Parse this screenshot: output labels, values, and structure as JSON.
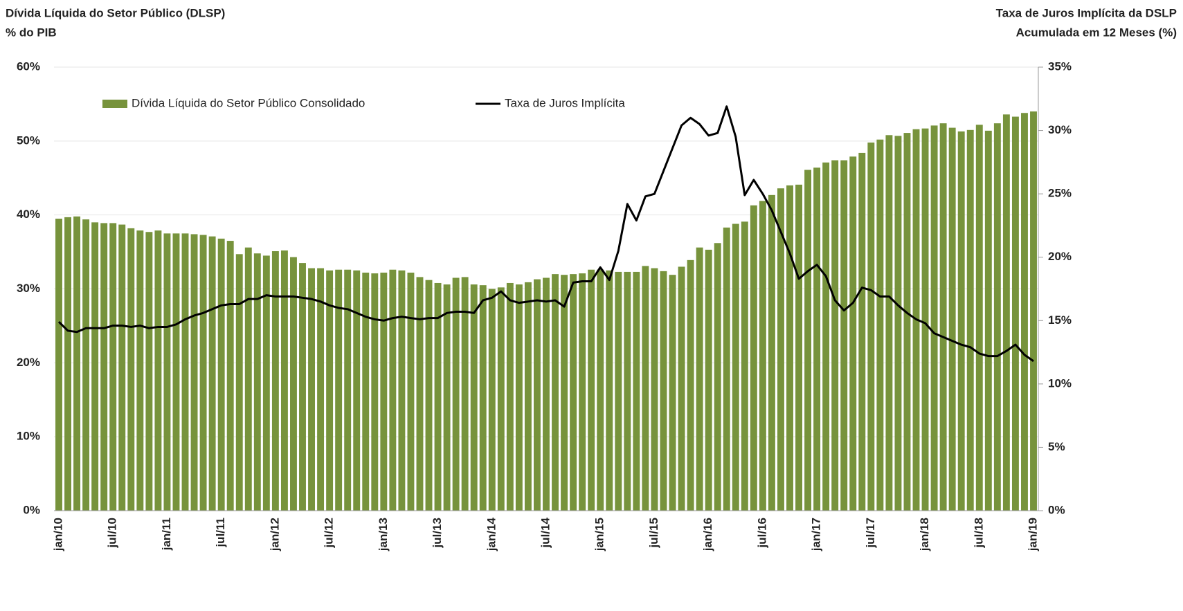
{
  "chart_data": {
    "type": "bar-line",
    "left_title": "Dívida Líquida do Setor Público (DLSP)",
    "left_subtitle": "% do PIB",
    "right_title": "Taxa de Juros Implícita da DSLP",
    "right_subtitle": "Acumulada em 12 Meses (%)",
    "categories": [
      "jan/10",
      null,
      null,
      null,
      null,
      null,
      "jul/10",
      null,
      null,
      null,
      null,
      null,
      "jan/11",
      null,
      null,
      null,
      null,
      null,
      "jul/11",
      null,
      null,
      null,
      null,
      null,
      "jan/12",
      null,
      null,
      null,
      null,
      null,
      "jul/12",
      null,
      null,
      null,
      null,
      null,
      "jan/13",
      null,
      null,
      null,
      null,
      null,
      "jul/13",
      null,
      null,
      null,
      null,
      null,
      "jan/14",
      null,
      null,
      null,
      null,
      null,
      "jul/14",
      null,
      null,
      null,
      null,
      null,
      "jan/15",
      null,
      null,
      null,
      null,
      null,
      "jul/15",
      null,
      null,
      null,
      null,
      null,
      "jan/16",
      null,
      null,
      null,
      null,
      null,
      "jul/16",
      null,
      null,
      null,
      null,
      null,
      "jan/17",
      null,
      null,
      null,
      null,
      null,
      "jul/17",
      null,
      null,
      null,
      null,
      null,
      "jan/18",
      null,
      null,
      null,
      null,
      null,
      "jul/18",
      null,
      null,
      null,
      null,
      null,
      "jan/19"
    ],
    "series": [
      {
        "name": "Dívida Líquida do Setor Público Consolidado",
        "kind": "bar",
        "color": "#77933c",
        "values": [
          39.5,
          39.7,
          39.8,
          39.4,
          39.0,
          38.9,
          38.9,
          38.7,
          38.2,
          37.9,
          37.7,
          37.9,
          37.5,
          37.5,
          37.5,
          37.4,
          37.3,
          37.1,
          36.8,
          36.5,
          34.7,
          35.6,
          34.8,
          34.5,
          35.1,
          35.2,
          34.3,
          33.5,
          32.8,
          32.8,
          32.5,
          32.6,
          32.6,
          32.5,
          32.2,
          32.1,
          32.2,
          32.6,
          32.5,
          32.2,
          31.6,
          31.2,
          30.8,
          30.6,
          31.5,
          31.6,
          30.6,
          30.5,
          30.0,
          30.2,
          30.8,
          30.6,
          30.9,
          31.3,
          31.5,
          32.0,
          31.9,
          32.0,
          32.1,
          32.6,
          32.6,
          32.5,
          32.3,
          32.3,
          32.3,
          33.1,
          32.8,
          32.4,
          31.9,
          33.0,
          33.9,
          35.6,
          35.3,
          36.2,
          38.3,
          38.8,
          39.1,
          41.3,
          41.9,
          42.7,
          43.6,
          44.0,
          44.1,
          46.1,
          46.4,
          47.1,
          47.4,
          47.4,
          47.9,
          48.4,
          49.8,
          50.2,
          50.8,
          50.7,
          51.1,
          51.6,
          51.7,
          52.1,
          52.4,
          51.8,
          51.3,
          51.5,
          52.2,
          51.4,
          52.4,
          53.6,
          53.3,
          53.8,
          54.0
        ]
      },
      {
        "name": "Taxa de Juros Implícita",
        "kind": "line",
        "axis": "y2",
        "color": "#000000",
        "values": [
          14.9,
          14.2,
          14.1,
          14.4,
          14.4,
          14.4,
          14.6,
          14.6,
          14.5,
          14.6,
          14.4,
          14.5,
          14.5,
          14.7,
          15.1,
          15.4,
          15.6,
          15.9,
          16.2,
          16.3,
          16.3,
          16.7,
          16.7,
          17.0,
          16.9,
          16.9,
          16.9,
          16.8,
          16.7,
          16.5,
          16.2,
          16.0,
          15.9,
          15.6,
          15.3,
          15.1,
          15.0,
          15.2,
          15.3,
          15.2,
          15.1,
          15.2,
          15.2,
          15.6,
          15.7,
          15.7,
          15.6,
          16.6,
          16.8,
          17.3,
          16.6,
          16.4,
          16.5,
          16.6,
          16.5,
          16.6,
          16.1,
          18.0,
          18.1,
          18.1,
          19.2,
          18.2,
          20.5,
          24.2,
          22.9,
          24.8,
          25.0,
          26.8,
          28.6,
          30.4,
          31.0,
          30.5,
          29.6,
          29.8,
          31.9,
          29.5,
          24.9,
          26.1,
          25.0,
          23.7,
          22.0,
          20.3,
          18.3,
          18.9,
          19.4,
          18.5,
          16.6,
          15.8,
          16.4,
          17.6,
          17.4,
          16.9,
          16.9,
          16.2,
          15.6,
          15.1,
          14.8,
          14.0,
          13.7,
          13.4,
          13.1,
          12.9,
          12.4,
          12.2,
          12.2,
          12.6,
          13.1,
          12.3,
          11.8
        ]
      }
    ],
    "ylim": [
      0,
      60
    ],
    "yticks": [
      {
        "value": 0,
        "label": "0%"
      },
      {
        "value": 10,
        "label": "10%"
      },
      {
        "value": 20,
        "label": "20%"
      },
      {
        "value": 30,
        "label": "30%"
      },
      {
        "value": 40,
        "label": "40%"
      },
      {
        "value": 50,
        "label": "50%"
      },
      {
        "value": 60,
        "label": "60%"
      }
    ],
    "y2lim": [
      0,
      35
    ],
    "y2ticks": [
      {
        "value": 0,
        "label": "0%"
      },
      {
        "value": 5,
        "label": "5%"
      },
      {
        "value": 10,
        "label": "10%"
      },
      {
        "value": 15,
        "label": "15%"
      },
      {
        "value": 20,
        "label": "20%"
      },
      {
        "value": 25,
        "label": "25%"
      },
      {
        "value": 30,
        "label": "30%"
      },
      {
        "value": 35,
        "label": "35%"
      }
    ],
    "grid": true
  }
}
